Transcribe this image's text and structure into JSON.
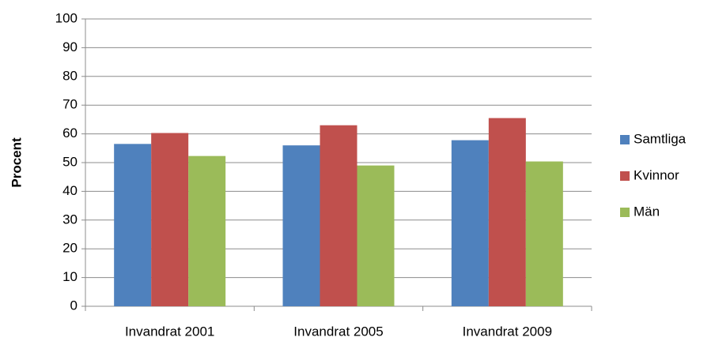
{
  "chart_data": {
    "type": "bar",
    "y_label": "Procent",
    "categories": [
      "Invandrat 2001",
      "Invandrat 2005",
      "Invandrat 2009"
    ],
    "series": [
      {
        "name": "Samtliga",
        "color": "#4f81bd",
        "values": [
          56.5,
          56,
          57.8
        ]
      },
      {
        "name": "Kvinnor",
        "color": "#c0504d",
        "values": [
          60.3,
          63,
          65.5
        ]
      },
      {
        "name": "Män",
        "color": "#9bbb59",
        "values": [
          52.3,
          49,
          50.4
        ]
      }
    ],
    "ylim": [
      0,
      100
    ],
    "yticks": [
      0,
      10,
      20,
      30,
      40,
      50,
      60,
      70,
      80,
      90,
      100
    ],
    "grid": true,
    "legend": "right"
  }
}
